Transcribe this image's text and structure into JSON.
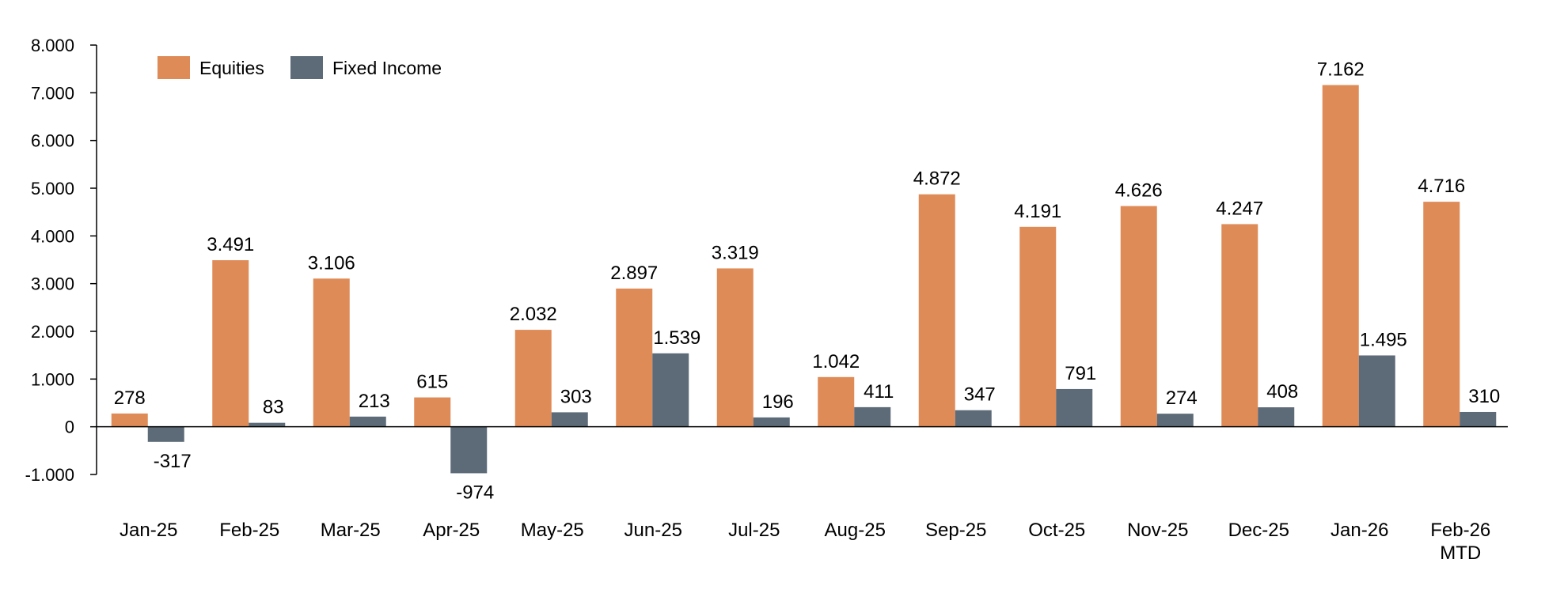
{
  "chart_data": {
    "type": "bar",
    "categories": [
      [
        "Jan-25"
      ],
      [
        "Feb-25"
      ],
      [
        "Mar-25"
      ],
      [
        "Apr-25"
      ],
      [
        "May-25"
      ],
      [
        "Jun-25"
      ],
      [
        "Jul-25"
      ],
      [
        "Aug-25"
      ],
      [
        "Sep-25"
      ],
      [
        "Oct-25"
      ],
      [
        "Nov-25"
      ],
      [
        "Dec-25"
      ],
      [
        "Jan-26"
      ],
      [
        "Feb-26",
        "MTD"
      ]
    ],
    "series": [
      {
        "name": "Equities",
        "color": "#df8b57",
        "values": [
          278,
          3491,
          3106,
          615,
          2032,
          2897,
          3319,
          1042,
          4872,
          4191,
          4626,
          4247,
          7162,
          4716
        ],
        "labels": [
          "278",
          "3.491",
          "3.106",
          "615",
          "2.032",
          "2.897",
          "3.319",
          "1.042",
          "4.872",
          "4.191",
          "4.626",
          "4.247",
          "7.162",
          "4.716"
        ]
      },
      {
        "name": "Fixed Income",
        "color": "#5d6b78",
        "values": [
          -317,
          83,
          213,
          -974,
          303,
          1539,
          196,
          411,
          347,
          791,
          274,
          408,
          1495,
          310
        ],
        "labels": [
          "-317",
          "83",
          "213",
          "-974",
          "303",
          "1.539",
          "196",
          "411",
          "347",
          "791",
          "274",
          "408",
          "1.495",
          "310"
        ]
      }
    ],
    "ylim": [
      -1000,
      8000
    ],
    "yticks": [
      8000,
      7000,
      6000,
      5000,
      4000,
      3000,
      2000,
      1000,
      0,
      -1000
    ],
    "ytick_labels": [
      "8.000",
      "7.000",
      "6.000",
      "5.000",
      "4.000",
      "3.000",
      "2.000",
      "1.000",
      "0",
      "-1.000"
    ],
    "title": "",
    "xlabel": "",
    "ylabel": "",
    "grid": false,
    "legend_position": "top-left"
  }
}
